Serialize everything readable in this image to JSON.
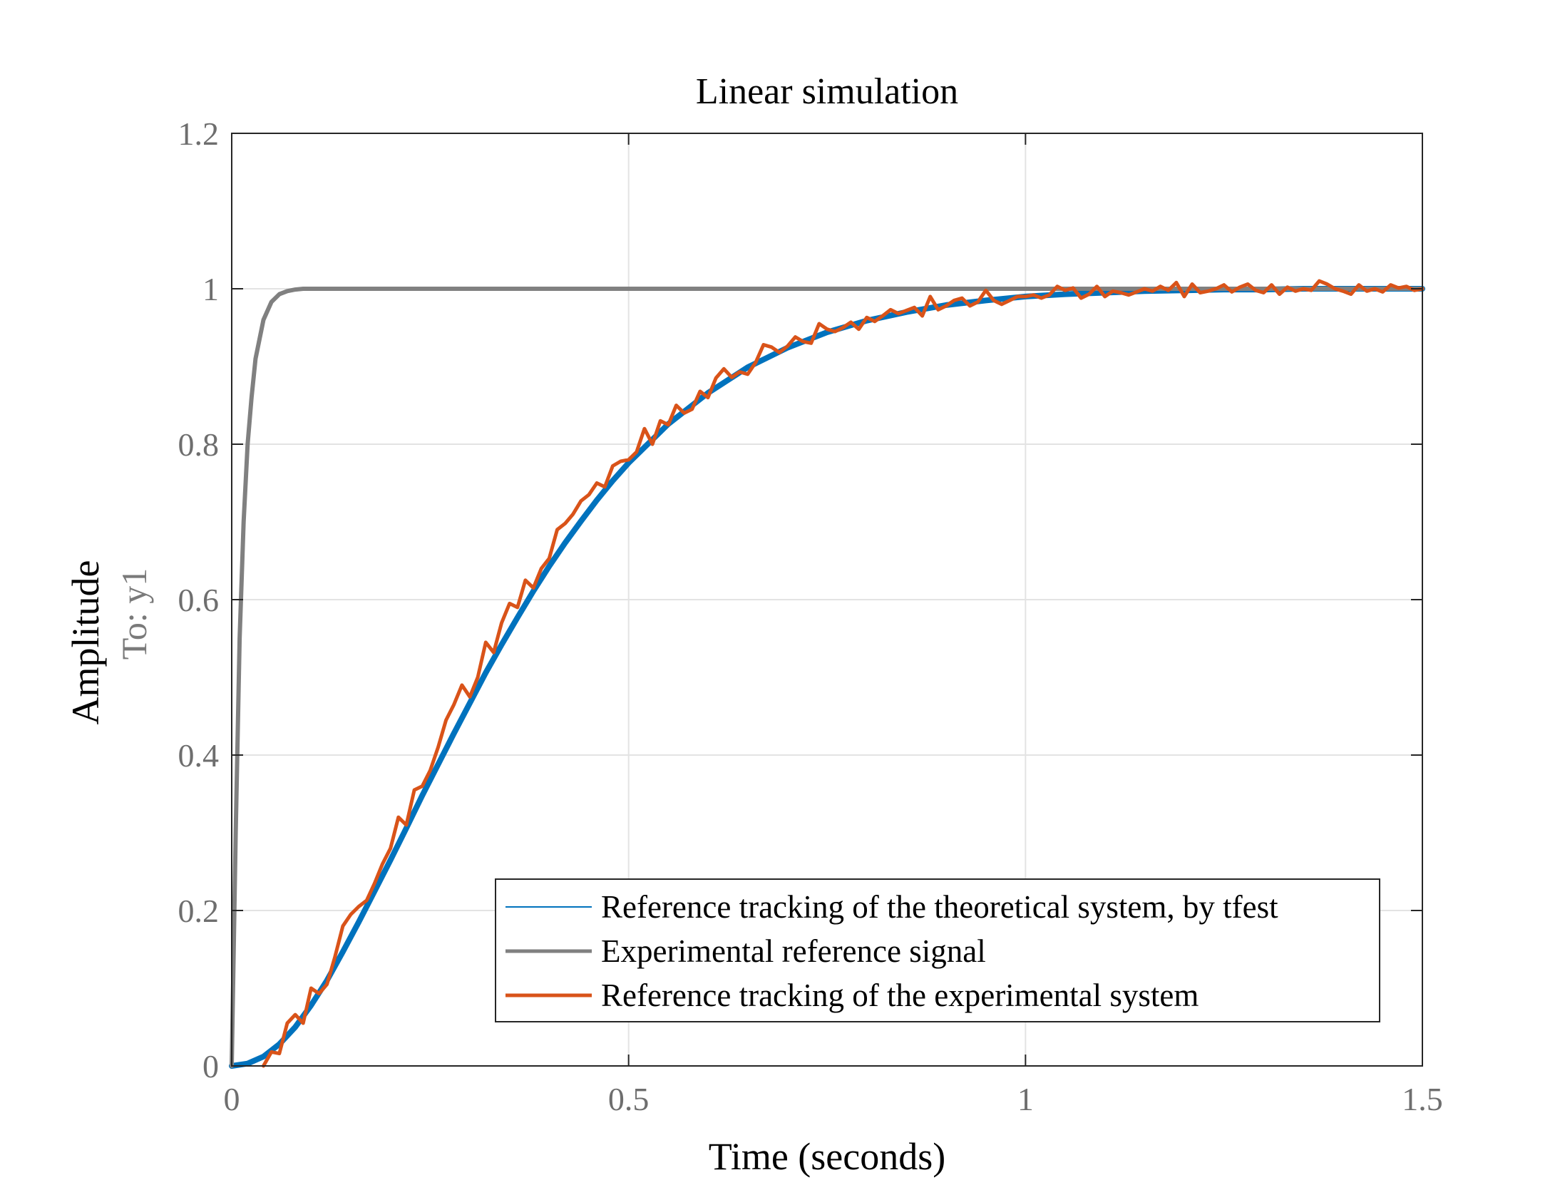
{
  "chart_data": {
    "type": "line",
    "title": "Linear simulation",
    "xlabel": "Time (seconds)",
    "ylabel": "Amplitude",
    "ylabel_secondary": "To: y1",
    "xlim": [
      0,
      1.5
    ],
    "ylim": [
      0,
      1.2
    ],
    "xticks": [
      0,
      0.5,
      1,
      1.5
    ],
    "xtick_labels": [
      "0",
      "0.5",
      "1",
      "1.5"
    ],
    "yticks": [
      0,
      0.2,
      0.4,
      0.6,
      0.8,
      1,
      1.2
    ],
    "ytick_labels": [
      "0",
      "0.2",
      "0.4",
      "0.6",
      "0.8",
      "1",
      "1.2"
    ],
    "grid": true,
    "legend_position": "bottom-right",
    "series": [
      {
        "name": "Reference tracking of the theoretical system, by tfest",
        "color": "#0072BD",
        "x": [
          0,
          0.02,
          0.04,
          0.06,
          0.08,
          0.1,
          0.12,
          0.14,
          0.16,
          0.18,
          0.2,
          0.22,
          0.24,
          0.26,
          0.28,
          0.3,
          0.32,
          0.34,
          0.36,
          0.38,
          0.4,
          0.42,
          0.44,
          0.46,
          0.48,
          0.5,
          0.55,
          0.6,
          0.65,
          0.7,
          0.75,
          0.8,
          0.85,
          0.9,
          0.95,
          1.0,
          1.05,
          1.1,
          1.15,
          1.2,
          1.25,
          1.3,
          1.35,
          1.4,
          1.45,
          1.5
        ],
        "values": [
          0,
          0.003,
          0.012,
          0.028,
          0.05,
          0.078,
          0.11,
          0.147,
          0.185,
          0.225,
          0.265,
          0.306,
          0.348,
          0.388,
          0.428,
          0.467,
          0.506,
          0.542,
          0.577,
          0.611,
          0.643,
          0.673,
          0.701,
          0.728,
          0.753,
          0.776,
          0.826,
          0.866,
          0.899,
          0.924,
          0.944,
          0.959,
          0.97,
          0.979,
          0.985,
          0.99,
          0.993,
          0.995,
          0.997,
          0.998,
          0.999,
          0.999,
          1.0,
          1.0,
          1.0,
          1.0
        ]
      },
      {
        "name": "Experimental reference signal",
        "color": "#808080",
        "x": [
          0,
          0.005,
          0.01,
          0.015,
          0.02,
          0.025,
          0.03,
          0.04,
          0.05,
          0.06,
          0.07,
          0.08,
          0.09,
          0.1,
          0.12,
          0.15,
          0.2,
          0.3,
          0.5,
          0.75,
          1.0,
          1.25,
          1.5
        ],
        "values": [
          0,
          0.3,
          0.55,
          0.7,
          0.8,
          0.86,
          0.91,
          0.96,
          0.983,
          0.993,
          0.997,
          0.999,
          1.0,
          1.0,
          1.0,
          1.0,
          1.0,
          1.0,
          1.0,
          1.0,
          1.0,
          1.0,
          1.0
        ]
      },
      {
        "name": "Reference tracking of the experimental system",
        "color": "#D95319",
        "x": [
          0.04,
          0.05,
          0.06,
          0.07,
          0.08,
          0.09,
          0.1,
          0.11,
          0.12,
          0.13,
          0.14,
          0.15,
          0.16,
          0.17,
          0.18,
          0.19,
          0.2,
          0.21,
          0.22,
          0.23,
          0.24,
          0.25,
          0.26,
          0.27,
          0.28,
          0.29,
          0.3,
          0.31,
          0.32,
          0.33,
          0.34,
          0.35,
          0.36,
          0.37,
          0.38,
          0.39,
          0.4,
          0.41,
          0.42,
          0.43,
          0.44,
          0.45,
          0.46,
          0.47,
          0.48,
          0.49,
          0.5,
          0.51,
          0.52,
          0.53,
          0.54,
          0.55,
          0.56,
          0.57,
          0.58,
          0.59,
          0.6,
          0.61,
          0.62,
          0.63,
          0.64,
          0.65,
          0.66,
          0.67,
          0.68,
          0.69,
          0.7,
          0.71,
          0.72,
          0.73,
          0.74,
          0.75,
          0.76,
          0.77,
          0.78,
          0.79,
          0.8,
          0.81,
          0.82,
          0.83,
          0.84,
          0.85,
          0.86,
          0.87,
          0.88,
          0.89,
          0.9,
          0.91,
          0.92,
          0.93,
          0.94,
          0.95,
          0.96,
          0.97,
          0.98,
          0.99,
          1.0,
          1.01,
          1.02,
          1.03,
          1.04,
          1.05,
          1.06,
          1.07,
          1.08,
          1.09,
          1.1,
          1.11,
          1.12,
          1.13,
          1.14,
          1.15,
          1.16,
          1.17,
          1.18,
          1.19,
          1.2,
          1.21,
          1.22,
          1.23,
          1.24,
          1.25,
          1.26,
          1.27,
          1.28,
          1.29,
          1.3,
          1.31,
          1.32,
          1.33,
          1.34,
          1.35,
          1.36,
          1.37,
          1.38,
          1.39,
          1.4,
          1.41,
          1.42,
          1.43,
          1.44,
          1.45,
          1.46,
          1.47,
          1.48,
          1.49,
          1.5
        ],
        "values": [
          0,
          0.018,
          0.016,
          0.055,
          0.066,
          0.055,
          0.1,
          0.093,
          0.105,
          0.14,
          0.18,
          0.195,
          0.205,
          0.213,
          0.235,
          0.26,
          0.28,
          0.32,
          0.31,
          0.355,
          0.36,
          0.38,
          0.41,
          0.445,
          0.465,
          0.49,
          0.475,
          0.5,
          0.545,
          0.532,
          0.57,
          0.595,
          0.59,
          0.625,
          0.615,
          0.64,
          0.653,
          0.69,
          0.698,
          0.71,
          0.727,
          0.735,
          0.75,
          0.745,
          0.772,
          0.778,
          0.78,
          0.79,
          0.82,
          0.8,
          0.83,
          0.825,
          0.85,
          0.84,
          0.845,
          0.868,
          0.86,
          0.885,
          0.897,
          0.886,
          0.893,
          0.89,
          0.905,
          0.928,
          0.925,
          0.918,
          0.926,
          0.938,
          0.932,
          0.93,
          0.955,
          0.948,
          0.945,
          0.95,
          0.957,
          0.948,
          0.963,
          0.958,
          0.965,
          0.973,
          0.968,
          0.972,
          0.976,
          0.965,
          0.99,
          0.973,
          0.978,
          0.985,
          0.988,
          0.978,
          0.983,
          0.998,
          0.985,
          0.98,
          0.985,
          0.99,
          0.99,
          0.992,
          0.988,
          0.992,
          1.003,
          0.998,
          1.001,
          0.988,
          0.993,
          1.003,
          0.99,
          0.997,
          0.995,
          0.992,
          0.996,
          1.0,
          0.997,
          1.003,
          0.998,
          1.008,
          0.99,
          1.006,
          0.995,
          0.997,
          1.0,
          1.005,
          0.996,
          1.002,
          1.006,
          0.998,
          0.995,
          1.005,
          0.993,
          1.002,
          0.997,
          1.0,
          0.998,
          1.01,
          1.006,
          1.0,
          0.997,
          0.993,
          1.005,
          0.997,
          1.0,
          0.996,
          1.005,
          1.001,
          1.003,
          0.998,
          1.0
        ]
      }
    ]
  }
}
